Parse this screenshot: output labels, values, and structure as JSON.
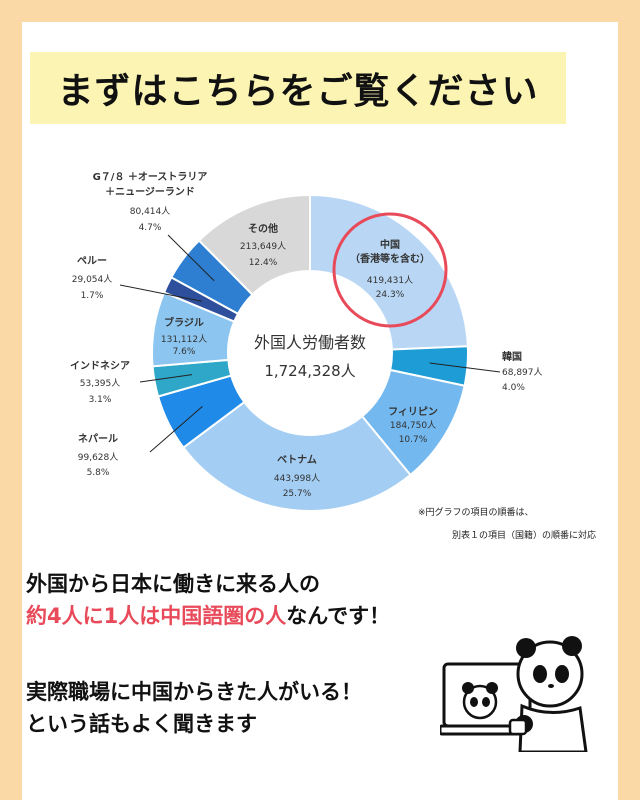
{
  "title": "まずはこちらをご覧ください",
  "chart_data": {
    "type": "pie",
    "center_label": "外国人労働者数",
    "center_value": "1,724,328人",
    "slices": [
      {
        "name": "中国",
        "sub": "（香港等を含む）",
        "value_text": "419,431人",
        "value": 419431,
        "percent": 24.3,
        "pct_text": "24.3%",
        "color": "#b9d7f4"
      },
      {
        "name": "韓国",
        "value_text": "68,897人",
        "value": 68897,
        "percent": 4.0,
        "pct_text": "4.0%",
        "color": "#1e9cd6"
      },
      {
        "name": "フィリピン",
        "value_text": "184,750人",
        "value": 184750,
        "percent": 10.7,
        "pct_text": "10.7%",
        "color": "#73b8ef"
      },
      {
        "name": "ベトナム",
        "value_text": "443,998人",
        "value": 443998,
        "percent": 25.7,
        "pct_text": "25.7%",
        "color": "#a3cdf3"
      },
      {
        "name": "ネパール",
        "value_text": "99,628人",
        "value": 99628,
        "percent": 5.8,
        "pct_text": "5.8%",
        "color": "#1f8ae8"
      },
      {
        "name": "インドネシア",
        "value_text": "53,395人",
        "value": 53395,
        "percent": 3.1,
        "pct_text": "3.1%",
        "color": "#2fa7c9"
      },
      {
        "name": "ブラジル",
        "value_text": "131,112人",
        "value": 131112,
        "percent": 7.6,
        "pct_text": "7.6%",
        "color": "#8cc6f0"
      },
      {
        "name": "ペルー",
        "value_text": "29,054人",
        "value": 29054,
        "percent": 1.7,
        "pct_text": "1.7%",
        "color": "#2d4f9c"
      },
      {
        "name": "G７/８ ＋オーストラリア",
        "sub": "＋ニュージーランド",
        "value_text": "80,414人",
        "value": 80414,
        "percent": 4.7,
        "pct_text": "4.7%",
        "color": "#2e7fd2"
      },
      {
        "name": "その他",
        "value_text": "213,649人",
        "value": 213649,
        "percent": 12.4,
        "pct_text": "12.4%",
        "color": "#d8d8d8"
      }
    ],
    "note_line1": "※円グラフの項目の順番は、",
    "note_line2": "別表１の項目（国籍）の順番に対応",
    "highlight_slice": "中国",
    "highlight_color": "#e84a5a"
  },
  "body": {
    "line1": "外国から日本に働きに来る人の",
    "line2_red": "約4人に1人は中国語圏の人",
    "line2_rest": "なんです！",
    "line3": "実際職場に中国からきた人がいる！",
    "line4": "という話もよく聞きます"
  }
}
